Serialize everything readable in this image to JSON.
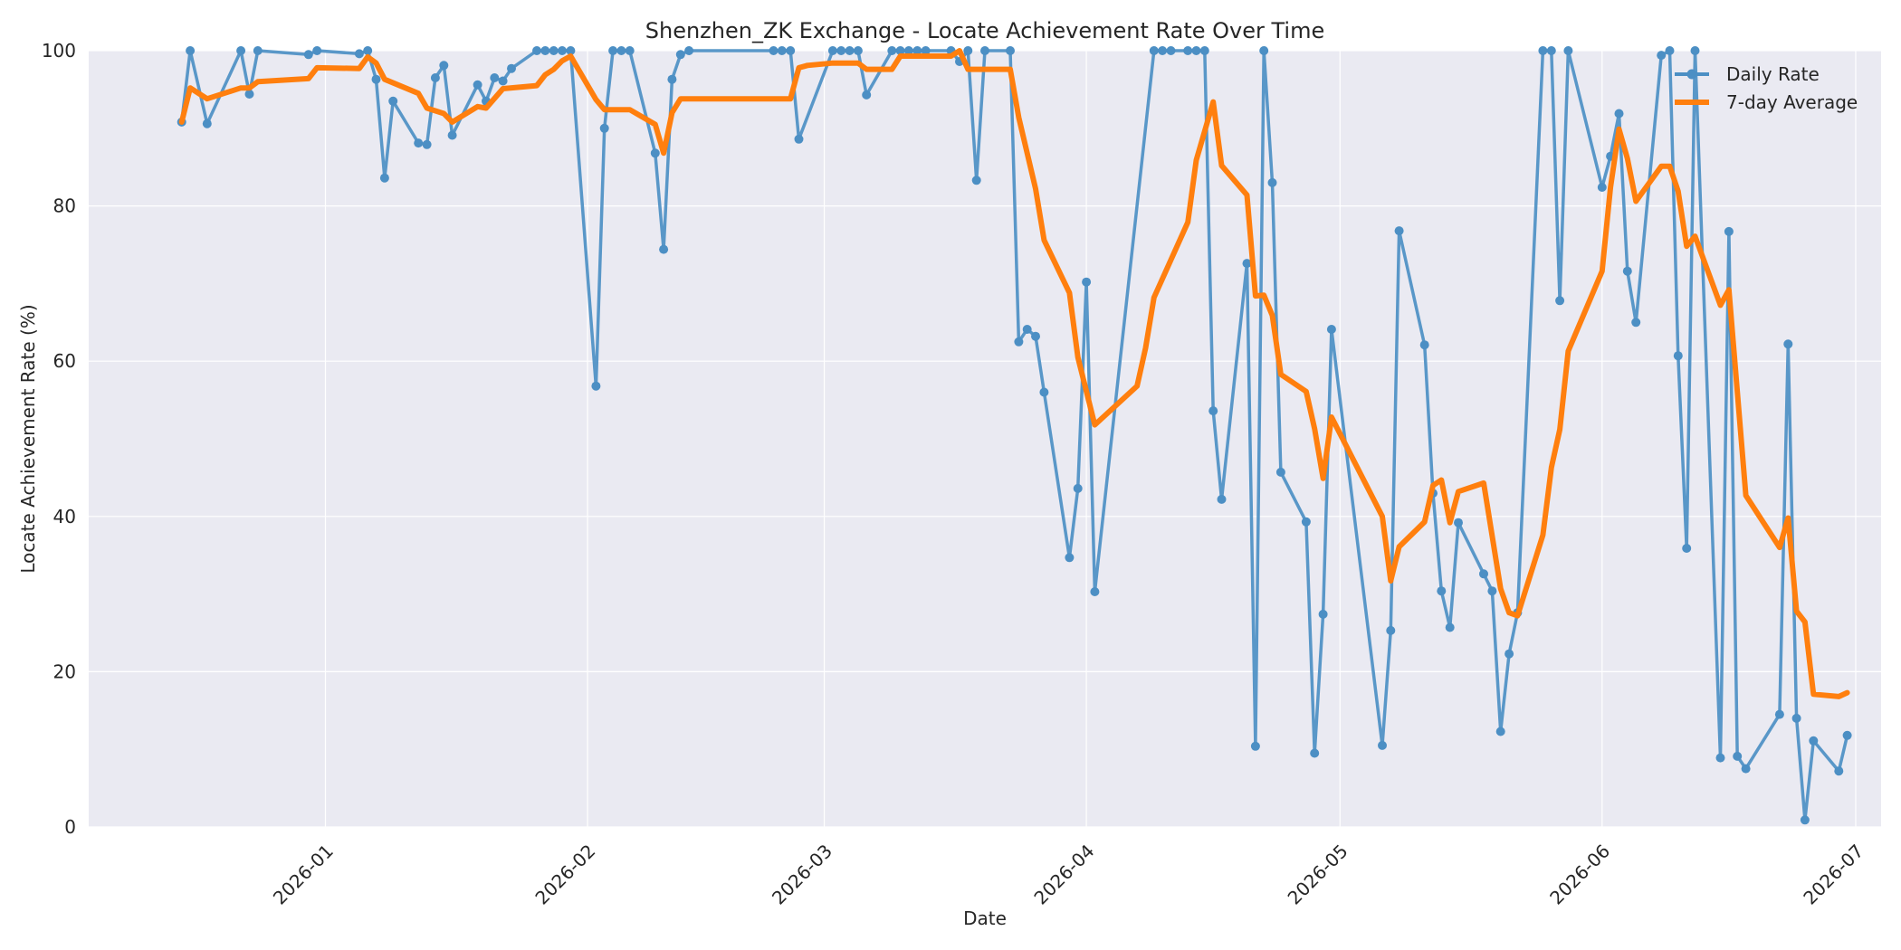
{
  "chart_data": {
    "type": "line",
    "title": "Shenzhen_ZK Exchange - Locate Achievement Rate Over Time",
    "xlabel": "Date",
    "ylabel": "Locate Achievement Rate (%)",
    "xlim": [
      "2025-12-04",
      "2026-07-04"
    ],
    "ylim": [
      0,
      100
    ],
    "x_ticks": [
      "2026-01-01",
      "2026-02-01",
      "2026-03-01",
      "2026-04-01",
      "2026-05-01",
      "2026-06-01",
      "2026-07-01"
    ],
    "x_tick_labels": [
      "2026-01",
      "2026-02",
      "2026-03",
      "2026-04",
      "2026-05",
      "2026-06",
      "2026-07"
    ],
    "y_ticks": [
      0,
      20,
      40,
      60,
      80,
      100
    ],
    "grid": true,
    "legend_position": "top-right",
    "colors": {
      "background": "#eaeaf2",
      "daily": "#4c8fc4",
      "average": "#ff7f0e"
    },
    "series": [
      {
        "name": "Daily Rate",
        "style": "line-with-markers",
        "points": [
          [
            "2025-12-15",
            90.8
          ],
          [
            "2025-12-16",
            100
          ],
          [
            "2025-12-18",
            90.6
          ],
          [
            "2025-12-22",
            100
          ],
          [
            "2025-12-23",
            94.4
          ],
          [
            "2025-12-24",
            100
          ],
          [
            "2025-12-30",
            99.5
          ],
          [
            "2025-12-31",
            100
          ],
          [
            "2026-01-05",
            99.6
          ],
          [
            "2026-01-06",
            100
          ],
          [
            "2026-01-07",
            96.3
          ],
          [
            "2026-01-08",
            83.6
          ],
          [
            "2026-01-09",
            93.5
          ],
          [
            "2026-01-12",
            88.1
          ],
          [
            "2026-01-13",
            87.9
          ],
          [
            "2026-01-14",
            96.5
          ],
          [
            "2026-01-15",
            98.1
          ],
          [
            "2026-01-16",
            89.1
          ],
          [
            "2026-01-19",
            95.6
          ],
          [
            "2026-01-20",
            93.5
          ],
          [
            "2026-01-21",
            96.5
          ],
          [
            "2026-01-22",
            96.1
          ],
          [
            "2026-01-23",
            97.7
          ],
          [
            "2026-01-26",
            100
          ],
          [
            "2026-01-27",
            100
          ],
          [
            "2026-01-28",
            100
          ],
          [
            "2026-01-29",
            100
          ],
          [
            "2026-01-30",
            100
          ],
          [
            "2026-02-02",
            56.8
          ],
          [
            "2026-02-03",
            90
          ],
          [
            "2026-02-04",
            100
          ],
          [
            "2026-02-05",
            100
          ],
          [
            "2026-02-06",
            100
          ],
          [
            "2026-02-09",
            86.8
          ],
          [
            "2026-02-10",
            74.4
          ],
          [
            "2026-02-11",
            96.3
          ],
          [
            "2026-02-12",
            99.5
          ],
          [
            "2026-02-13",
            100
          ],
          [
            "2026-02-23",
            100
          ],
          [
            "2026-02-24",
            100
          ],
          [
            "2026-02-25",
            100
          ],
          [
            "2026-02-26",
            88.6
          ],
          [
            "2026-03-02",
            100
          ],
          [
            "2026-03-03",
            100
          ],
          [
            "2026-03-04",
            100
          ],
          [
            "2026-03-05",
            100
          ],
          [
            "2026-03-06",
            94.3
          ],
          [
            "2026-03-09",
            100
          ],
          [
            "2026-03-10",
            100
          ],
          [
            "2026-03-11",
            100
          ],
          [
            "2026-03-12",
            100
          ],
          [
            "2026-03-13",
            100
          ],
          [
            "2026-03-16",
            100
          ],
          [
            "2026-03-17",
            98.6
          ],
          [
            "2026-03-18",
            100
          ],
          [
            "2026-03-19",
            83.3
          ],
          [
            "2026-03-20",
            100
          ],
          [
            "2026-03-23",
            100
          ],
          [
            "2026-03-24",
            62.5
          ],
          [
            "2026-03-25",
            64.1
          ],
          [
            "2026-03-26",
            63.2
          ],
          [
            "2026-03-27",
            56
          ],
          [
            "2026-03-30",
            34.7
          ],
          [
            "2026-03-31",
            43.6
          ],
          [
            "2026-04-01",
            70.2
          ],
          [
            "2026-04-02",
            30.3
          ],
          [
            "2026-04-09",
            100
          ],
          [
            "2026-04-10",
            100
          ],
          [
            "2026-04-11",
            100
          ],
          [
            "2026-04-13",
            100
          ],
          [
            "2026-04-14",
            100
          ],
          [
            "2026-04-15",
            100
          ],
          [
            "2026-04-16",
            53.6
          ],
          [
            "2026-04-17",
            42.2
          ],
          [
            "2026-04-20",
            72.6
          ],
          [
            "2026-04-21",
            10.4
          ],
          [
            "2026-04-22",
            100
          ],
          [
            "2026-04-23",
            83
          ],
          [
            "2026-04-24",
            45.7
          ],
          [
            "2026-04-27",
            39.3
          ],
          [
            "2026-04-28",
            9.5
          ],
          [
            "2026-04-29",
            27.4
          ],
          [
            "2026-04-30",
            64.1
          ],
          [
            "2026-05-06",
            10.5
          ],
          [
            "2026-05-07",
            25.3
          ],
          [
            "2026-05-08",
            76.8
          ],
          [
            "2026-05-11",
            62.1
          ],
          [
            "2026-05-12",
            43
          ],
          [
            "2026-05-13",
            30.4
          ],
          [
            "2026-05-14",
            25.7
          ],
          [
            "2026-05-15",
            39.2
          ],
          [
            "2026-05-18",
            32.6
          ],
          [
            "2026-05-19",
            30.4
          ],
          [
            "2026-05-20",
            12.3
          ],
          [
            "2026-05-21",
            22.3
          ],
          [
            "2026-05-22",
            27.6
          ],
          [
            "2026-05-25",
            100
          ],
          [
            "2026-05-26",
            100
          ],
          [
            "2026-05-27",
            67.8
          ],
          [
            "2026-05-28",
            100
          ],
          [
            "2026-06-01",
            82.4
          ],
          [
            "2026-06-02",
            86.4
          ],
          [
            "2026-06-03",
            91.9
          ],
          [
            "2026-06-04",
            71.6
          ],
          [
            "2026-06-05",
            65
          ],
          [
            "2026-06-08",
            99.4
          ],
          [
            "2026-06-09",
            100
          ],
          [
            "2026-06-10",
            60.7
          ],
          [
            "2026-06-11",
            35.9
          ],
          [
            "2026-06-12",
            100
          ],
          [
            "2026-06-15",
            8.9
          ],
          [
            "2026-06-16",
            76.7
          ],
          [
            "2026-06-17",
            9.1
          ],
          [
            "2026-06-18",
            7.5
          ],
          [
            "2026-06-22",
            14.5
          ],
          [
            "2026-06-23",
            62.2
          ],
          [
            "2026-06-24",
            14
          ],
          [
            "2026-06-25",
            0.9
          ],
          [
            "2026-06-26",
            11.1
          ],
          [
            "2026-06-29",
            7.2
          ],
          [
            "2026-06-30",
            11.8
          ]
        ]
      },
      {
        "name": "7-day Average",
        "style": "thick-line",
        "points": [
          [
            "2025-12-15",
            90.8
          ],
          [
            "2025-12-16",
            95.2
          ],
          [
            "2025-12-18",
            93.8
          ],
          [
            "2025-12-22",
            95.2
          ],
          [
            "2025-12-23",
            95.2
          ],
          [
            "2025-12-24",
            96
          ],
          [
            "2025-12-30",
            96.4
          ],
          [
            "2025-12-31",
            97.8
          ],
          [
            "2026-01-05",
            97.7
          ],
          [
            "2026-01-06",
            99.2
          ],
          [
            "2026-01-07",
            98.4
          ],
          [
            "2026-01-08",
            96.3
          ],
          [
            "2026-01-12",
            94.5
          ],
          [
            "2026-01-13",
            92.6
          ],
          [
            "2026-01-15",
            91.9
          ],
          [
            "2026-01-16",
            90.8
          ],
          [
            "2026-01-19",
            92.8
          ],
          [
            "2026-01-20",
            92.6
          ],
          [
            "2026-01-22",
            95.1
          ],
          [
            "2026-01-26",
            95.5
          ],
          [
            "2026-01-27",
            96.9
          ],
          [
            "2026-01-28",
            97.6
          ],
          [
            "2026-01-29",
            98.7
          ],
          [
            "2026-01-30",
            99.3
          ],
          [
            "2026-02-02",
            93.7
          ],
          [
            "2026-02-03",
            92.4
          ],
          [
            "2026-02-06",
            92.4
          ],
          [
            "2026-02-09",
            90.5
          ],
          [
            "2026-02-10",
            86.8
          ],
          [
            "2026-02-11",
            92
          ],
          [
            "2026-02-12",
            93.8
          ],
          [
            "2026-02-25",
            93.8
          ],
          [
            "2026-02-26",
            97.8
          ],
          [
            "2026-02-27",
            98.1
          ],
          [
            "2026-03-02",
            98.4
          ],
          [
            "2026-03-05",
            98.4
          ],
          [
            "2026-03-06",
            97.6
          ],
          [
            "2026-03-09",
            97.6
          ],
          [
            "2026-03-10",
            99.3
          ],
          [
            "2026-03-16",
            99.3
          ],
          [
            "2026-03-17",
            100
          ],
          [
            "2026-03-18",
            97.6
          ],
          [
            "2026-03-23",
            97.6
          ],
          [
            "2026-03-24",
            91.4
          ],
          [
            "2026-03-26",
            82.2
          ],
          [
            "2026-03-27",
            75.6
          ],
          [
            "2026-03-30",
            68.8
          ],
          [
            "2026-03-31",
            60.5
          ],
          [
            "2026-04-02",
            51.8
          ],
          [
            "2026-04-07",
            56.8
          ],
          [
            "2026-04-08",
            61.7
          ],
          [
            "2026-04-09",
            68.2
          ],
          [
            "2026-04-13",
            77.9
          ],
          [
            "2026-04-14",
            85.9
          ],
          [
            "2026-04-16",
            93.4
          ],
          [
            "2026-04-17",
            85.2
          ],
          [
            "2026-04-20",
            81.4
          ],
          [
            "2026-04-21",
            68.4
          ],
          [
            "2026-04-22",
            68.5
          ],
          [
            "2026-04-23",
            65.9
          ],
          [
            "2026-04-24",
            58.3
          ],
          [
            "2026-04-27",
            56.1
          ],
          [
            "2026-04-28",
            51.3
          ],
          [
            "2026-04-29",
            44.9
          ],
          [
            "2026-04-30",
            52.8
          ],
          [
            "2026-05-06",
            40
          ],
          [
            "2026-05-07",
            31.7
          ],
          [
            "2026-05-08",
            36.1
          ],
          [
            "2026-05-11",
            39.3
          ],
          [
            "2026-05-12",
            44
          ],
          [
            "2026-05-13",
            44.7
          ],
          [
            "2026-05-14",
            39.2
          ],
          [
            "2026-05-15",
            43.2
          ],
          [
            "2026-05-18",
            44.3
          ],
          [
            "2026-05-20",
            30.7
          ],
          [
            "2026-05-21",
            27.6
          ],
          [
            "2026-05-22",
            27.2
          ],
          [
            "2026-05-25",
            37.6
          ],
          [
            "2026-05-26",
            46.3
          ],
          [
            "2026-05-27",
            51.2
          ],
          [
            "2026-05-28",
            61.3
          ],
          [
            "2026-06-01",
            71.6
          ],
          [
            "2026-06-02",
            82.4
          ],
          [
            "2026-06-03",
            89.9
          ],
          [
            "2026-06-04",
            86.1
          ],
          [
            "2026-06-05",
            80.6
          ],
          [
            "2026-06-08",
            85.1
          ],
          [
            "2026-06-09",
            85.1
          ],
          [
            "2026-06-10",
            81.9
          ],
          [
            "2026-06-11",
            74.8
          ],
          [
            "2026-06-12",
            76.1
          ],
          [
            "2026-06-15",
            67.2
          ],
          [
            "2026-06-16",
            69.2
          ],
          [
            "2026-06-18",
            42.7
          ],
          [
            "2026-06-22",
            36
          ],
          [
            "2026-06-23",
            39.8
          ],
          [
            "2026-06-24",
            27.8
          ],
          [
            "2026-06-25",
            26.4
          ],
          [
            "2026-06-26",
            17.1
          ],
          [
            "2026-06-29",
            16.8
          ],
          [
            "2026-06-30",
            17.3
          ]
        ]
      }
    ]
  }
}
